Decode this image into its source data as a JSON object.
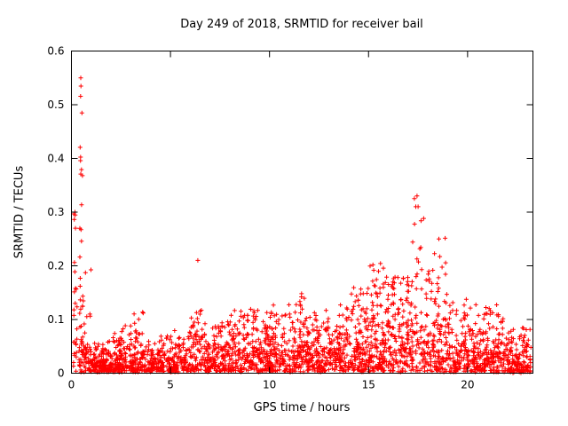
{
  "figure": {
    "title": "Day 249 of 2018, SRMTID for receiver bail",
    "xlabel": "GPS time / hours",
    "ylabel": "SRMTID / TECUs"
  },
  "chart_data": {
    "type": "scatter",
    "title": "Day 249 of 2018, SRMTID for receiver bail",
    "xlabel": "GPS time / hours",
    "ylabel": "SRMTID / TECUs",
    "xlim": [
      0,
      23.3
    ],
    "ylim": [
      0,
      0.6
    ],
    "xticks": {
      "values": [
        0,
        5,
        10,
        15,
        20
      ],
      "labels": [
        "0",
        "5",
        "10",
        "15",
        "20"
      ]
    },
    "yticks": {
      "values": [
        0,
        0.1,
        0.2,
        0.3,
        0.4,
        0.5,
        0.6
      ],
      "labels": [
        "0",
        "0.1",
        "0.2",
        "0.3",
        "0.4",
        "0.5",
        "0.6"
      ]
    },
    "grid": false,
    "legend": "none",
    "marker": "plus",
    "marker_color": "#ff0000",
    "marker_size_px": 5,
    "axis_color": "#000000",
    "background_color": "#ffffff",
    "series_name": "SRMTID",
    "point_count_estimate": 2900,
    "seed": 249,
    "description": "Dense scatter of red plus markers; baseline band 0-0.12 TECUs all day; tall narrow spike up to 0.55 near hour 0.5; isolated point 0.21 near hour 6.4; elevated activity 0.1-0.2 between hours 14-17; secondary spike to 0.33 near hour 17.5; values taper to ~0.05 by hour 23.",
    "segments": [
      {
        "x0": 0.1,
        "x1": 0.35,
        "n": 25,
        "mode": 0.12,
        "max": 0.32
      },
      {
        "x0": 0.42,
        "x1": 0.6,
        "n": 22,
        "ymin": 0.05,
        "ymax": 0.55
      },
      {
        "x0": 0.38,
        "x1": 1.0,
        "n": 70,
        "mode": 0.05,
        "max": 0.2
      },
      {
        "x0": 1.0,
        "x1": 2.0,
        "n": 150,
        "mode": 0.018,
        "max": 0.06
      },
      {
        "x0": 2.0,
        "x1": 3.0,
        "n": 130,
        "mode": 0.025,
        "max": 0.09
      },
      {
        "x0": 3.0,
        "x1": 3.7,
        "n": 90,
        "mode": 0.03,
        "max": 0.13
      },
      {
        "x0": 3.7,
        "x1": 5.0,
        "n": 140,
        "mode": 0.022,
        "max": 0.07
      },
      {
        "x0": 5.0,
        "x1": 6.0,
        "n": 110,
        "mode": 0.028,
        "max": 0.08
      },
      {
        "x0": 6.0,
        "x1": 6.6,
        "n": 70,
        "mode": 0.05,
        "max": 0.12
      },
      {
        "x0": 6.6,
        "x1": 8.0,
        "n": 160,
        "mode": 0.038,
        "max": 0.1
      },
      {
        "x0": 8.0,
        "x1": 10.0,
        "n": 240,
        "mode": 0.05,
        "max": 0.12
      },
      {
        "x0": 10.0,
        "x1": 11.5,
        "n": 180,
        "mode": 0.048,
        "max": 0.13
      },
      {
        "x0": 11.5,
        "x1": 12.5,
        "n": 140,
        "mode": 0.055,
        "max": 0.15
      },
      {
        "x0": 12.5,
        "x1": 14.0,
        "n": 170,
        "mode": 0.05,
        "max": 0.13
      },
      {
        "x0": 14.0,
        "x1": 15.0,
        "n": 130,
        "mode": 0.055,
        "max": 0.16
      },
      {
        "x0": 15.0,
        "x1": 16.0,
        "n": 150,
        "mode": 0.08,
        "max": 0.21
      },
      {
        "x0": 16.0,
        "x1": 17.2,
        "n": 170,
        "mode": 0.09,
        "max": 0.18
      },
      {
        "x0": 17.2,
        "x1": 17.8,
        "n": 60,
        "mode": 0.12,
        "max": 0.33
      },
      {
        "x0": 17.8,
        "x1": 19.0,
        "n": 150,
        "mode": 0.07,
        "max": 0.27
      },
      {
        "x0": 19.0,
        "x1": 20.5,
        "n": 170,
        "mode": 0.055,
        "max": 0.14
      },
      {
        "x0": 20.5,
        "x1": 22.0,
        "n": 170,
        "mode": 0.05,
        "max": 0.13
      },
      {
        "x0": 22.0,
        "x1": 23.2,
        "n": 150,
        "mode": 0.03,
        "max": 0.09
      }
    ],
    "outliers": [
      [
        0.18,
        0.3
      ],
      [
        0.2,
        0.27
      ],
      [
        6.38,
        0.21
      ],
      [
        17.45,
        0.33
      ],
      [
        17.5,
        0.31
      ],
      [
        18.55,
        0.25
      ]
    ]
  }
}
